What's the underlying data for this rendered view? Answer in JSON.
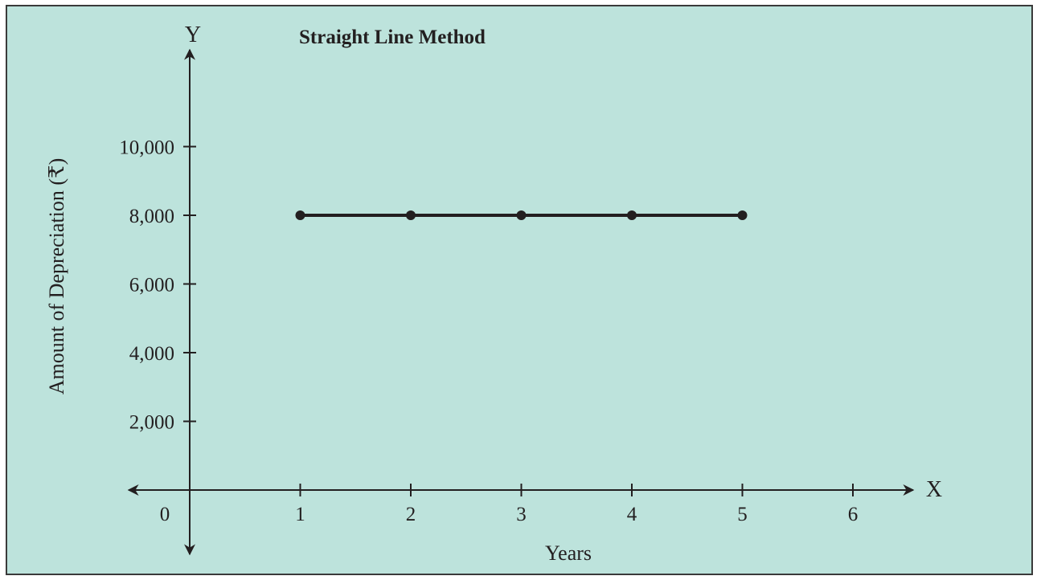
{
  "chart_data": {
    "type": "line",
    "title": "Straight Line Method",
    "xlabel": "Years",
    "ylabel": "Amount of Depreciation  (₹)",
    "x_axis_letter": "X",
    "y_axis_letter": "Y",
    "x_ticks": [
      "0",
      "1",
      "2",
      "3",
      "4",
      "5",
      "6"
    ],
    "y_ticks": [
      "2,000",
      "4,000",
      "6,000",
      "8,000",
      "10,000"
    ],
    "xlim": [
      0,
      6.5
    ],
    "ylim": [
      0,
      12000
    ],
    "grid": false,
    "series": [
      {
        "x": [
          1,
          2,
          3,
          4,
          5
        ],
        "y": [
          8000,
          8000,
          8000,
          8000,
          8000
        ]
      }
    ],
    "colors": {
      "background": "#bde3dc",
      "ink": "#231f20",
      "border": "#3a3a3a"
    }
  }
}
